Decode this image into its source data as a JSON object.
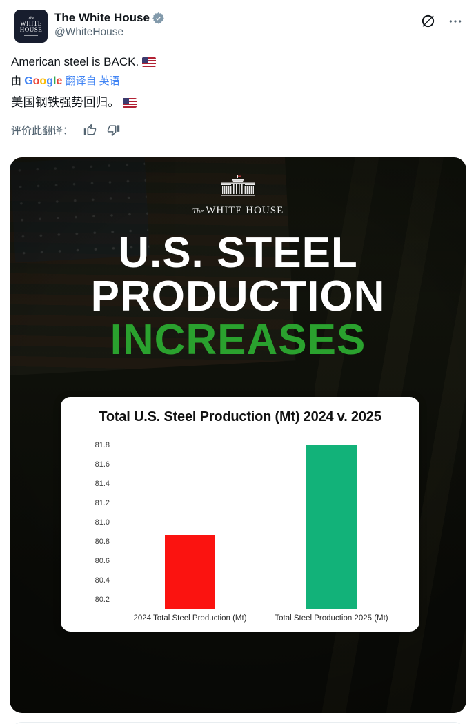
{
  "header": {
    "display_name": "The White House",
    "handle": "@WhiteHouse",
    "avatar_lines": [
      "The",
      "WHITE",
      "HOUSE"
    ],
    "badge_color": "#829aab",
    "icons": {
      "grok": "grok-slash-circle-icon",
      "more": "more-ellipsis-icon"
    }
  },
  "tweet": {
    "text": "American steel is BACK.",
    "flag_icon": "us-flag"
  },
  "translation": {
    "prefix": "由",
    "google_letters": [
      {
        "ch": "G",
        "color": "#4285F4"
      },
      {
        "ch": "o",
        "color": "#EA4335"
      },
      {
        "ch": "o",
        "color": "#FBBC05"
      },
      {
        "ch": "g",
        "color": "#4285F4"
      },
      {
        "ch": "l",
        "color": "#34A853"
      },
      {
        "ch": "e",
        "color": "#EA4335"
      }
    ],
    "suffix": "翻译自 英语",
    "link_color": "#4285f4",
    "translated_text": "美国钢铁强势回归。",
    "rate_label": "评价此翻译：",
    "icons": {
      "thumb_up": "thumb-up-icon",
      "thumb_down": "thumb-down-icon"
    }
  },
  "image": {
    "logo_the": "The",
    "logo_name": "WHITE HOUSE",
    "headline_line1": "U.S. STEEL",
    "headline_line2": "PRODUCTION",
    "headline_line3": "INCREASES",
    "headline_white": "#ffffff",
    "headline_green": "#2aa12e"
  },
  "chart_data": {
    "type": "bar",
    "title": "Total U.S. Steel Production (Mt) 2024 v. 2025",
    "categories": [
      "2024 Total Steel Production (Mt)",
      "Total Steel Production 2025 (Mt)"
    ],
    "values": [
      80.87,
      81.8
    ],
    "colors": [
      "#fb1310",
      "#12b279"
    ],
    "ylim": [
      80.1,
      81.9
    ],
    "yticks": [
      "81.8",
      "81.6",
      "81.4",
      "81.2",
      "81.0",
      "80.8",
      "80.6",
      "80.4",
      "80.2"
    ],
    "xlabel": "",
    "ylabel": "",
    "grid": false,
    "legend": "none"
  }
}
